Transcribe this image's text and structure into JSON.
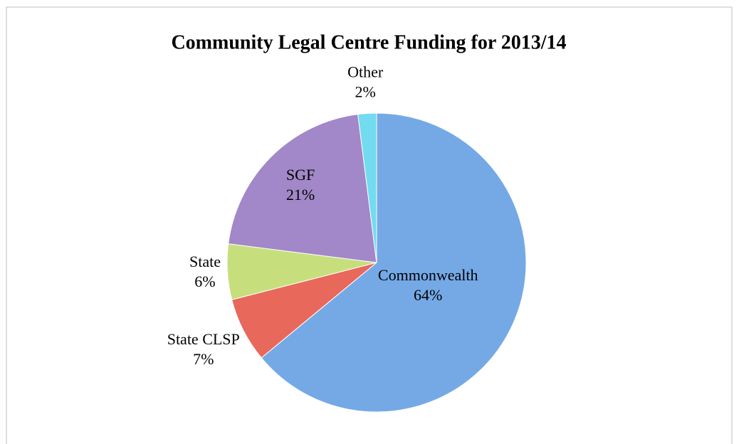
{
  "chart_data": {
    "type": "pie",
    "title": "Community Legal Centre Funding for 2013/14",
    "categories": [
      "Commonwealth",
      "State CLSP",
      "State",
      "SGF",
      "Other"
    ],
    "values": [
      64,
      7,
      6,
      21,
      2
    ],
    "value_labels": [
      "64%",
      "7%",
      "6%",
      "21%",
      "2%"
    ],
    "colors": [
      "#74a9e6",
      "#e8685c",
      "#c6df7c",
      "#a288c8",
      "#72dbf0"
    ]
  }
}
